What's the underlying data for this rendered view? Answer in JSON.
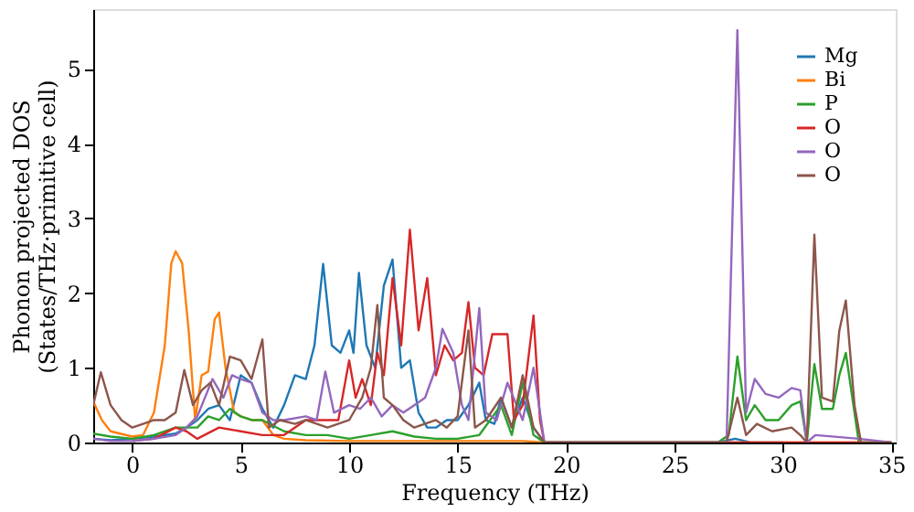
{
  "chart_data": {
    "type": "line",
    "xlabel": "Frequency (THz)",
    "ylabel": "Phonon projected DOS\n(States/THz·primitive cell)",
    "xlim": [
      -1.8,
      35.2
    ],
    "ylim": [
      0,
      5.8
    ],
    "xticks": [
      0,
      5,
      10,
      15,
      20,
      25,
      30,
      35
    ],
    "yticks": [
      0,
      1,
      2,
      3,
      4,
      5
    ],
    "grid": false,
    "legend": "top right",
    "line_style": "solid",
    "marker": "none",
    "series": [
      {
        "name": "Mg",
        "color": "#1f77b4",
        "x": [
          -1.8,
          -1,
          0,
          1,
          2,
          2.5,
          3,
          3.5,
          4,
          4.5,
          5,
          5.5,
          6,
          6.5,
          7,
          7.5,
          8,
          8.4,
          8.8,
          9.2,
          9.6,
          10,
          10.2,
          10.45,
          10.8,
          11.2,
          11.6,
          12,
          12.4,
          12.8,
          13.2,
          13.6,
          14,
          14.5,
          15,
          15.5,
          16,
          16.3,
          16.7,
          17,
          17.5,
          18,
          18.5,
          19,
          27,
          27.8,
          28.5,
          30
        ],
        "values": [
          0.05,
          0.03,
          0.05,
          0.08,
          0.12,
          0.2,
          0.3,
          0.45,
          0.5,
          0.3,
          0.9,
          0.8,
          0.45,
          0.2,
          0.5,
          0.9,
          0.85,
          1.3,
          2.39,
          1.3,
          1.2,
          1.5,
          1.2,
          2.27,
          1.3,
          1.0,
          2.1,
          2.45,
          1.0,
          1.1,
          0.4,
          0.2,
          0.2,
          0.3,
          0.3,
          0.5,
          0.8,
          0.3,
          0.25,
          0.6,
          0.2,
          0.6,
          0.2,
          0,
          0,
          0.05,
          0,
          0
        ]
      },
      {
        "name": "Bi",
        "color": "#ff7f0e",
        "x": [
          -1.8,
          -1.4,
          -1,
          0,
          0.5,
          1,
          1.5,
          1.8,
          2.0,
          2.3,
          2.6,
          2.9,
          3.2,
          3.5,
          3.8,
          4.0,
          4.3,
          4.7,
          5,
          5.5,
          6,
          6.5,
          7,
          8,
          10,
          12,
          15,
          18,
          19,
          27,
          35
        ],
        "values": [
          0.55,
          0.3,
          0.15,
          0.08,
          0.1,
          0.4,
          1.3,
          2.4,
          2.56,
          2.4,
          1.5,
          0.3,
          0.9,
          0.95,
          1.65,
          1.74,
          1.0,
          0.4,
          0.35,
          0.3,
          0.3,
          0.1,
          0.05,
          0.03,
          0.02,
          0.02,
          0.02,
          0.02,
          0,
          0,
          0
        ]
      },
      {
        "name": "P",
        "color": "#2ca02c",
        "x": [
          -1.8,
          -1,
          0,
          1,
          2,
          3,
          3.5,
          4,
          4.5,
          5,
          5.5,
          6,
          7,
          8,
          9,
          10,
          11,
          12,
          13,
          14,
          15,
          16,
          17,
          17.5,
          18,
          18.5,
          19,
          27,
          27.5,
          27.9,
          28.3,
          28.7,
          29.2,
          29.8,
          30.4,
          30.8,
          31.1,
          31.45,
          31.8,
          32.3,
          32.6,
          32.9,
          33.2,
          33.5,
          35
        ],
        "values": [
          0.12,
          0.08,
          0.05,
          0.1,
          0.2,
          0.2,
          0.35,
          0.3,
          0.45,
          0.35,
          0.3,
          0.3,
          0.15,
          0.1,
          0.1,
          0.05,
          0.1,
          0.15,
          0.08,
          0.05,
          0.05,
          0.1,
          0.5,
          0.1,
          0.8,
          0.1,
          0,
          0,
          0.1,
          1.15,
          0.3,
          0.5,
          0.3,
          0.3,
          0.5,
          0.55,
          0,
          1.05,
          0.45,
          0.45,
          0.9,
          1.2,
          0.6,
          0,
          0
        ]
      },
      {
        "name": "O",
        "color": "#d62728",
        "x": [
          0,
          1,
          2,
          2.5,
          3,
          4,
          5,
          6,
          7,
          8,
          9,
          9.5,
          10,
          10.3,
          10.6,
          11,
          11.3,
          11.6,
          12,
          12.4,
          12.8,
          13.2,
          13.6,
          14,
          14.4,
          14.8,
          15.2,
          15.5,
          15.8,
          16.2,
          16.6,
          17.3,
          17.6,
          18,
          18.5,
          18.8,
          19,
          27,
          35
        ],
        "values": [
          0.02,
          0.05,
          0.2,
          0.15,
          0.05,
          0.2,
          0.15,
          0.1,
          0.1,
          0.3,
          0.3,
          0.3,
          1.1,
          0.6,
          0.85,
          0.5,
          1.2,
          0.9,
          2.2,
          1.3,
          2.85,
          1.5,
          2.2,
          0.9,
          1.3,
          1.1,
          1.2,
          1.88,
          1.0,
          0.9,
          1.45,
          1.45,
          0.3,
          0.5,
          1.7,
          0.3,
          0,
          0,
          0
        ]
      },
      {
        "name": "O",
        "color": "#9467bd",
        "x": [
          -1.8,
          -1,
          0,
          1,
          2,
          2.5,
          3,
          3.7,
          4.2,
          4.6,
          5,
          5.5,
          6,
          6.5,
          7,
          8,
          8.5,
          8.9,
          9.3,
          10,
          10.5,
          11,
          11.5,
          12,
          12.5,
          13,
          13.5,
          14,
          14.3,
          14.8,
          15.2,
          15.5,
          16,
          16.3,
          16.8,
          17.3,
          18,
          18.5,
          19,
          27.4,
          27.9,
          28.3,
          28.7,
          29.2,
          29.8,
          30.4,
          30.8,
          31.1,
          31.5,
          33.5,
          35
        ],
        "values": [
          0.05,
          0.02,
          0.02,
          0.05,
          0.1,
          0.2,
          0.35,
          0.85,
          0.6,
          0.9,
          0.85,
          0.8,
          0.4,
          0.3,
          0.3,
          0.35,
          0.3,
          0.95,
          0.4,
          0.5,
          0.45,
          0.6,
          0.35,
          0.5,
          0.4,
          0.5,
          0.6,
          1.0,
          1.52,
          1.2,
          0.5,
          0.3,
          1.8,
          0.4,
          0.3,
          0.8,
          0.3,
          1.0,
          0,
          0,
          5.52,
          0.4,
          0.85,
          0.65,
          0.6,
          0.73,
          0.7,
          0,
          0.1,
          0.05,
          0
        ]
      },
      {
        "name": "O",
        "color": "#8c564b",
        "x": [
          -1.8,
          -1.45,
          -1,
          -0.5,
          0,
          0.5,
          1,
          1.5,
          2,
          2.4,
          2.8,
          3.2,
          3.6,
          4,
          4.5,
          5,
          5.5,
          6,
          6.3,
          6.8,
          7.5,
          8,
          9,
          10,
          10.6,
          11,
          11.3,
          11.6,
          12,
          12.5,
          13,
          14,
          14.5,
          15,
          15.5,
          15.8,
          16.3,
          17,
          17.5,
          18,
          18.5,
          19,
          27.4,
          27.9,
          28.3,
          28.8,
          29.5,
          30.4,
          30.8,
          31.1,
          31.45,
          31.8,
          32.3,
          32.6,
          32.9,
          33.3,
          33.6,
          35
        ],
        "values": [
          0.5,
          0.94,
          0.5,
          0.3,
          0.2,
          0.25,
          0.3,
          0.3,
          0.4,
          0.97,
          0.5,
          0.7,
          0.8,
          0.5,
          1.15,
          1.1,
          0.85,
          1.38,
          0.2,
          0.3,
          0.25,
          0.3,
          0.2,
          0.3,
          0.6,
          1.0,
          1.84,
          0.6,
          0.5,
          0.3,
          0.2,
          0.3,
          0.2,
          0.35,
          1.5,
          0.2,
          0.3,
          0.6,
          0.2,
          0.9,
          0.2,
          0,
          0,
          0.6,
          0.1,
          0.25,
          0.15,
          0.2,
          0.1,
          0,
          2.78,
          0.6,
          0.55,
          1.5,
          1.9,
          0.5,
          0,
          0
        ]
      }
    ]
  }
}
